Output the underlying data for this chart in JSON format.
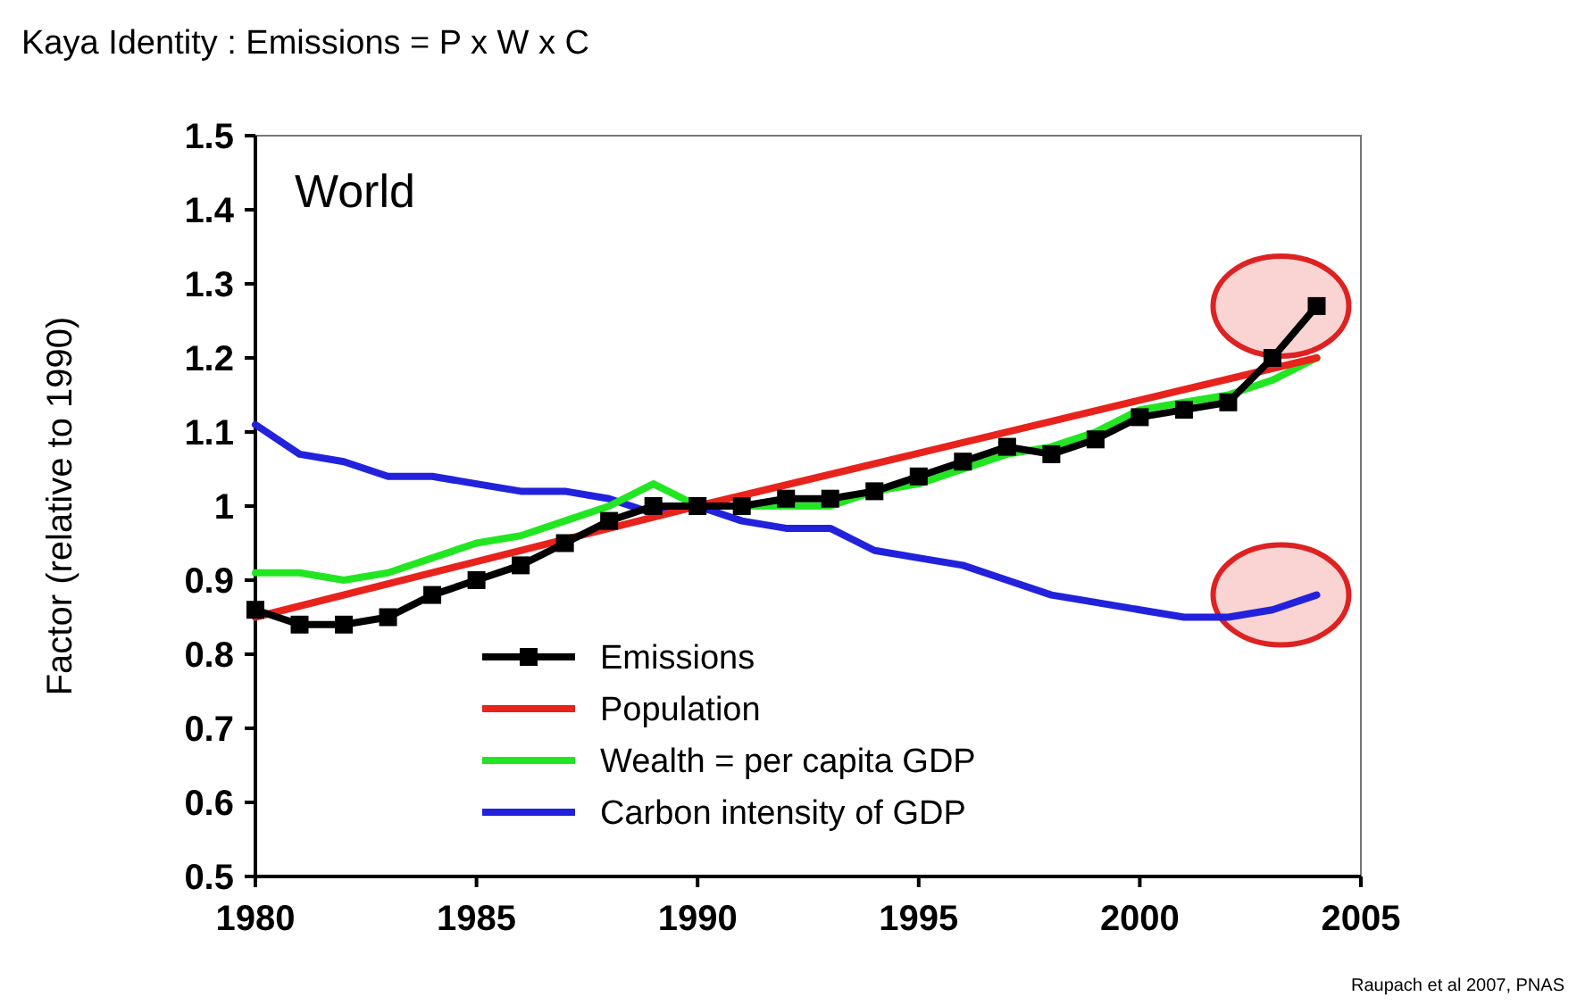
{
  "chart_data": {
    "type": "line",
    "title": "Kaya Identity : Emissions = P x W x C",
    "ylabel": "Factor (relative to 1990)",
    "annotations": [
      "World",
      "Raupach et al 2007, PNAS"
    ],
    "x": [
      1980,
      1981,
      1982,
      1983,
      1984,
      1985,
      1986,
      1987,
      1988,
      1989,
      1990,
      1991,
      1992,
      1993,
      1994,
      1995,
      1996,
      1997,
      1998,
      1999,
      2000,
      2001,
      2002,
      2003,
      2004
    ],
    "series": [
      {
        "name": "Emissions",
        "color": "#000000",
        "marker": "square",
        "values": [
          0.86,
          0.84,
          0.84,
          0.85,
          0.88,
          0.9,
          0.92,
          0.95,
          0.98,
          1.0,
          1.0,
          1.0,
          1.01,
          1.01,
          1.02,
          1.04,
          1.06,
          1.08,
          1.07,
          1.09,
          1.12,
          1.13,
          1.14,
          1.2,
          1.27
        ]
      },
      {
        "name": "Population",
        "color": "#e8231c",
        "marker": "none",
        "x": [
          1980,
          1990,
          2004
        ],
        "values": [
          0.85,
          1.0,
          1.2
        ]
      },
      {
        "name": "Wealth = per capita GDP",
        "color": "#22e622",
        "marker": "none",
        "values": [
          0.91,
          0.91,
          0.9,
          0.91,
          0.93,
          0.95,
          0.96,
          0.98,
          1.0,
          1.03,
          1.0,
          1.0,
          1.0,
          1.0,
          1.02,
          1.03,
          1.05,
          1.07,
          1.08,
          1.1,
          1.13,
          1.14,
          1.15,
          1.17,
          1.2
        ]
      },
      {
        "name": "Carbon intensity of GDP",
        "color": "#2222dd",
        "marker": "none",
        "values": [
          1.11,
          1.07,
          1.06,
          1.04,
          1.04,
          1.03,
          1.02,
          1.02,
          1.01,
          0.99,
          1.0,
          0.98,
          0.97,
          0.97,
          0.94,
          0.93,
          0.92,
          0.9,
          0.88,
          0.87,
          0.86,
          0.85,
          0.85,
          0.86,
          0.88
        ]
      }
    ],
    "xlim": [
      1980,
      2005
    ],
    "xticks": [
      1980,
      1985,
      1990,
      1995,
      2000,
      2005
    ],
    "ylim": [
      0.5,
      1.5
    ],
    "yticks": [
      {
        "value": 0.5,
        "label": "0.5"
      },
      {
        "value": 0.6,
        "label": "0.6"
      },
      {
        "value": 0.7,
        "label": "0.7"
      },
      {
        "value": 0.8,
        "label": "0.8"
      },
      {
        "value": 0.9,
        "label": "0.9"
      },
      {
        "value": 1,
        "label": "1"
      },
      {
        "value": 1.1,
        "label": "1.1"
      },
      {
        "value": 1.2,
        "label": "1.2"
      },
      {
        "value": 1.3,
        "label": "1.3"
      },
      {
        "value": 1.4,
        "label": "1.4"
      },
      {
        "value": 1.5,
        "label": "1.5"
      }
    ],
    "grid": false,
    "legend": "bottom",
    "line_style": "solid"
  }
}
